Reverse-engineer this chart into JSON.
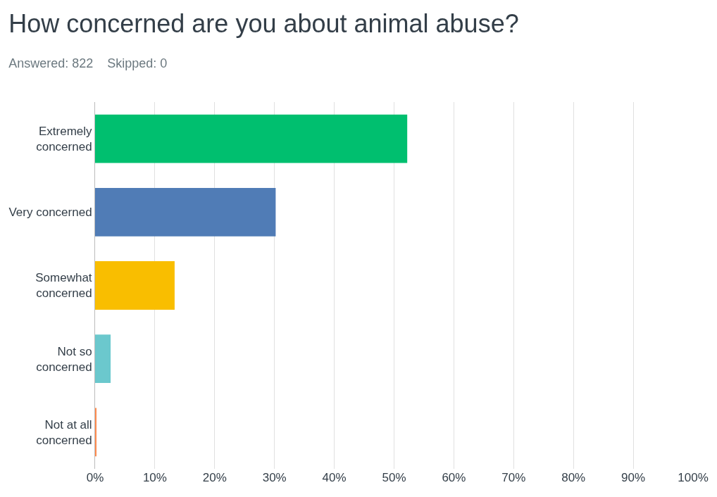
{
  "chart_data": {
    "type": "bar",
    "orientation": "horizontal",
    "title": "How concerned are you about animal abuse?",
    "subtitle": "Answered: 822    Skipped: 0",
    "categories": [
      "Extremely concerned",
      "Very concerned",
      "Somewhat concerned",
      "Not so concerned",
      "Not at all concerned"
    ],
    "values": [
      52.2,
      30.2,
      13.3,
      2.6,
      0.2
    ],
    "colors": [
      "#00bf6f",
      "#507cb6",
      "#f9be00",
      "#6bc8cd",
      "#ff8b4f"
    ],
    "xlim": [
      0,
      100
    ],
    "xticks": [
      {
        "value": 0,
        "label": "0%"
      },
      {
        "value": 10,
        "label": "10%"
      },
      {
        "value": 20,
        "label": "20%"
      },
      {
        "value": 30,
        "label": "30%"
      },
      {
        "value": 40,
        "label": "40%"
      },
      {
        "value": 50,
        "label": "50%"
      },
      {
        "value": 60,
        "label": "60%"
      },
      {
        "value": 70,
        "label": "70%"
      },
      {
        "value": 80,
        "label": "80%"
      },
      {
        "value": 90,
        "label": "90%"
      },
      {
        "value": 100,
        "label": "100%"
      }
    ],
    "grid": "x"
  }
}
